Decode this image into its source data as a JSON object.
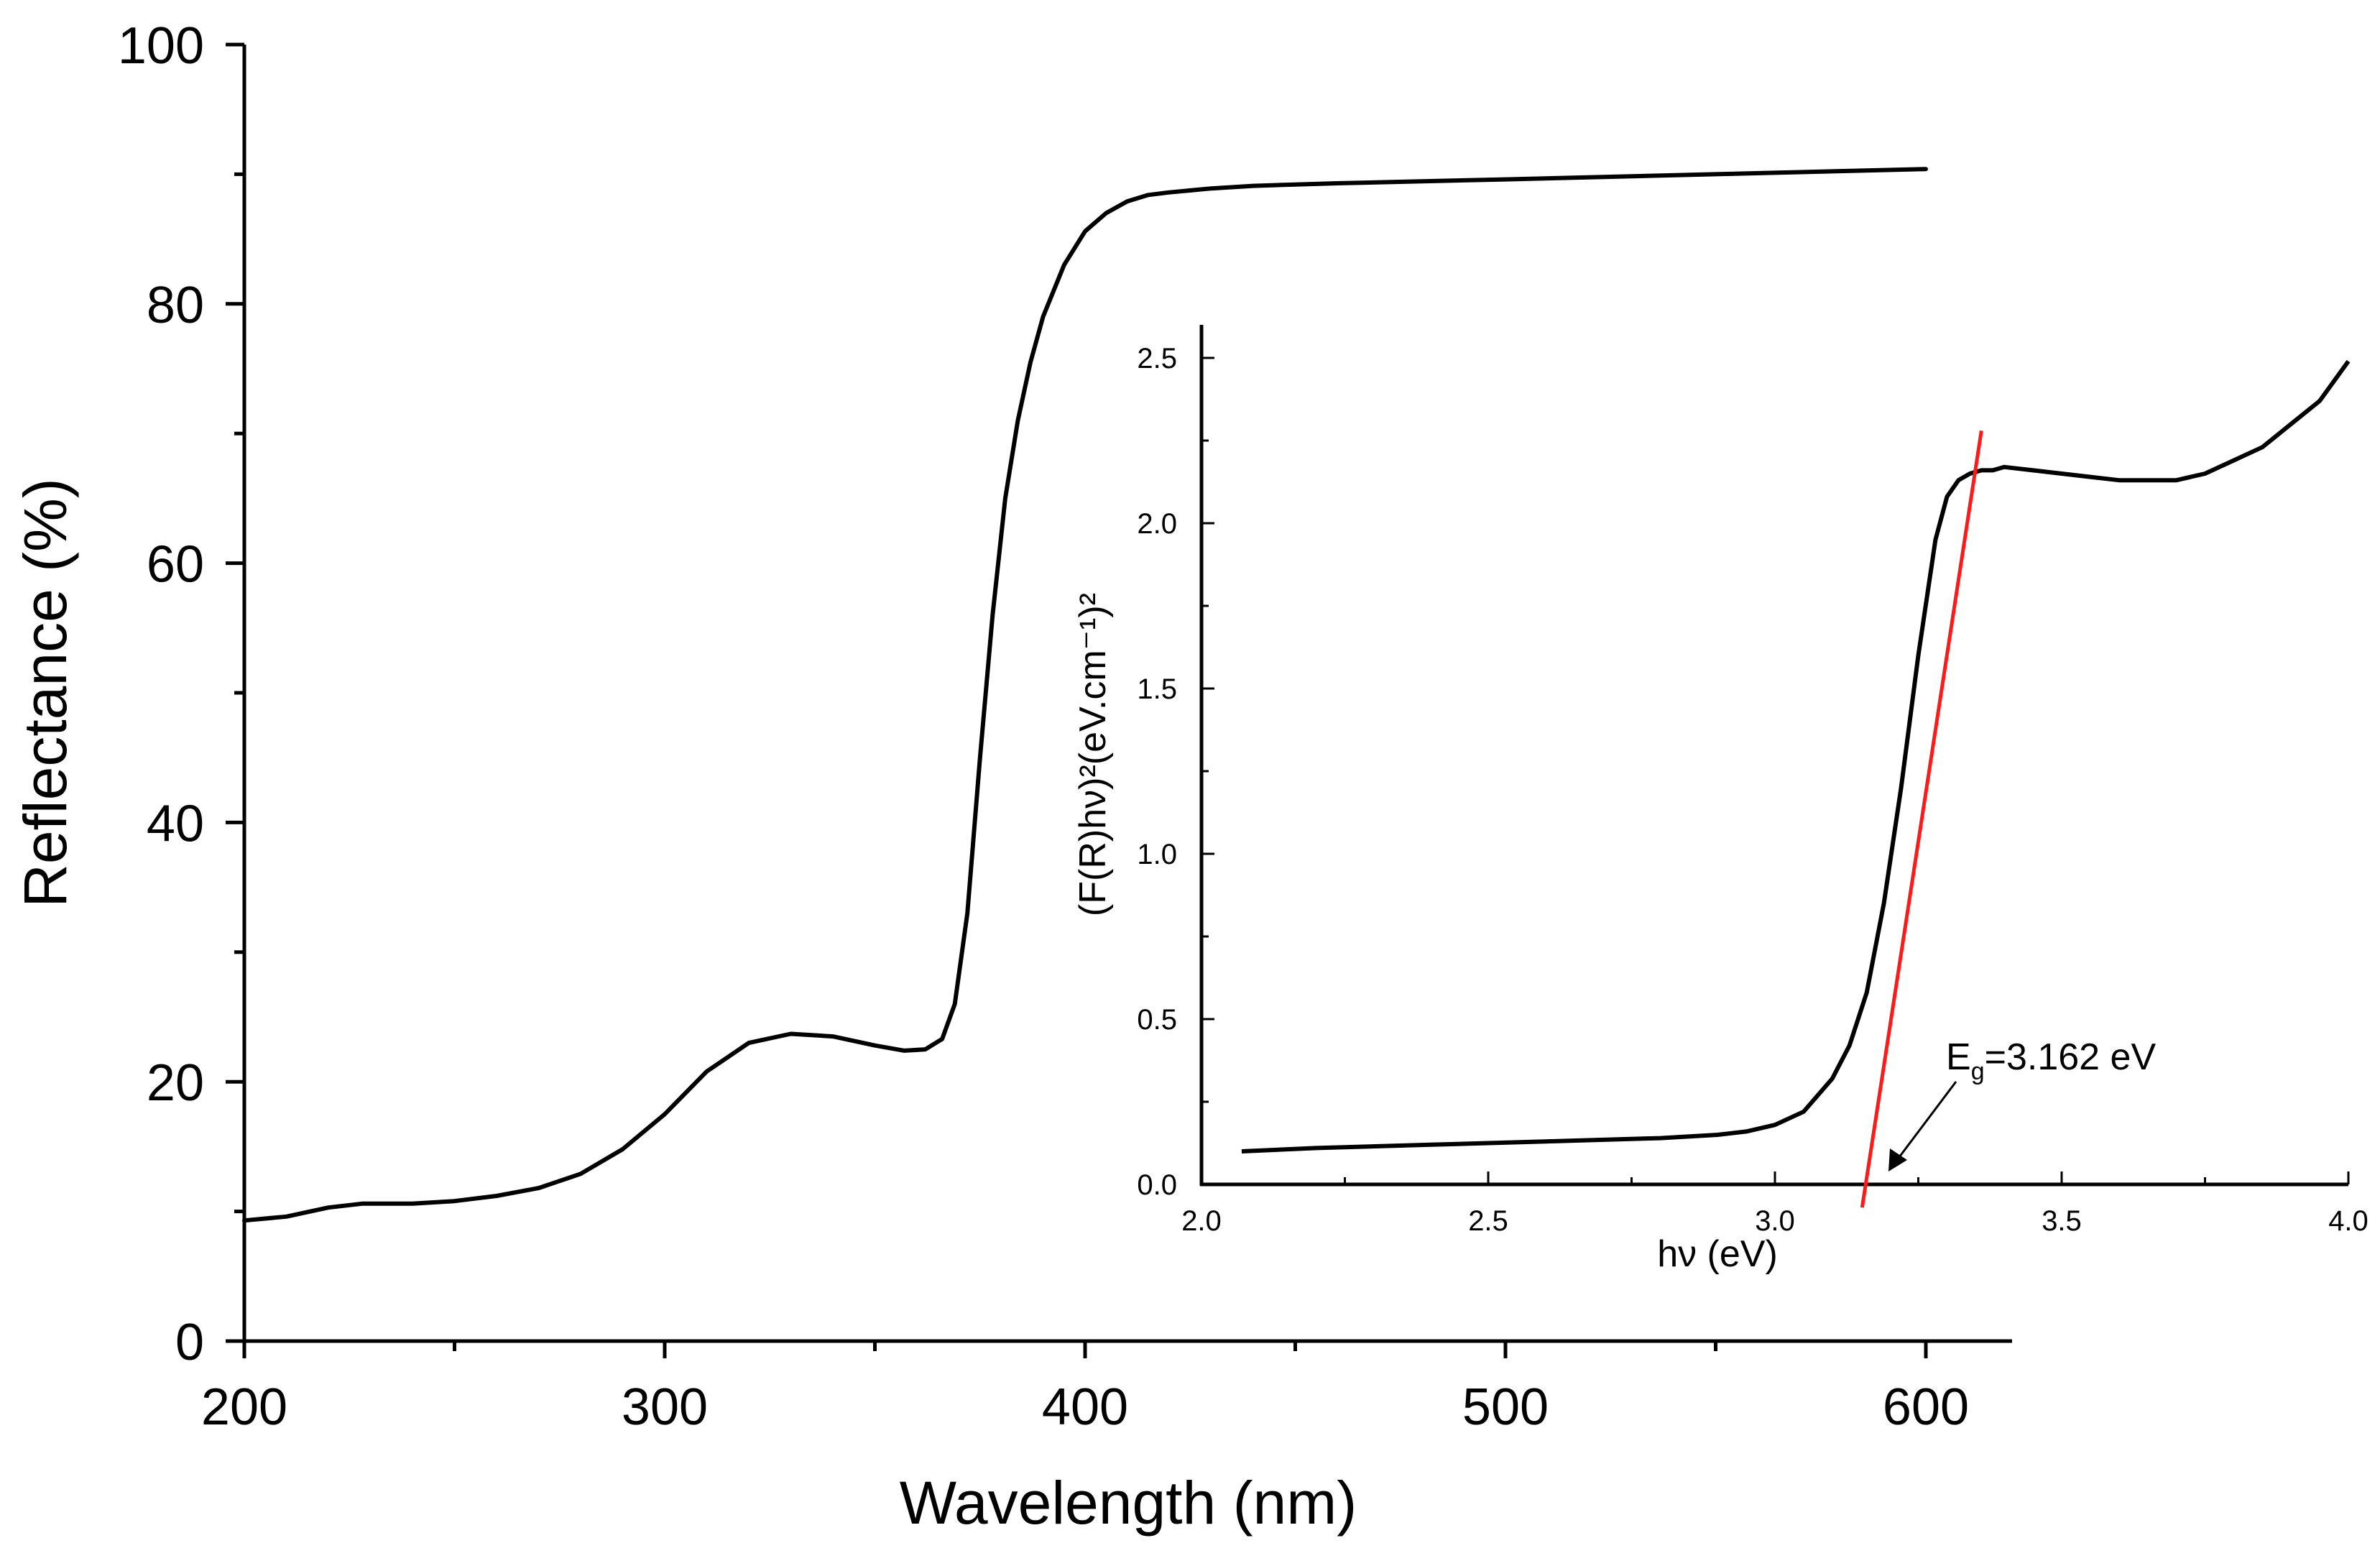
{
  "chart_data": [
    {
      "type": "line",
      "title": "",
      "xlabel": "Wavelength (nm)",
      "ylabel": "Reflectance (%)",
      "xlim": [
        200,
        620
      ],
      "ylim": [
        0,
        100
      ],
      "xticks": [
        200,
        300,
        400,
        500,
        600
      ],
      "xtick_labels": [
        "200",
        "300",
        "400",
        "500",
        "600"
      ],
      "yticks": [
        0,
        20,
        40,
        60,
        80,
        100
      ],
      "ytick_labels": [
        "0",
        "20",
        "40",
        "60",
        "80",
        "100"
      ],
      "series": [
        {
          "name": "Reflectance",
          "x": [
            200,
            210,
            220,
            228,
            240,
            250,
            260,
            270,
            280,
            290,
            300,
            310,
            320,
            330,
            340,
            350,
            357,
            362,
            366,
            369,
            372,
            375,
            378,
            381,
            384,
            387,
            390,
            395,
            400,
            405,
            410,
            415,
            420,
            430,
            440,
            460,
            500,
            550,
            600
          ],
          "y": [
            9.3,
            9.6,
            10.3,
            10.6,
            10.6,
            10.8,
            11.2,
            11.8,
            12.9,
            14.8,
            17.5,
            20.8,
            23.0,
            23.7,
            23.5,
            22.8,
            22.4,
            22.5,
            23.3,
            26.0,
            33.0,
            45.0,
            56.0,
            65.0,
            71.0,
            75.5,
            79.0,
            83.0,
            85.6,
            87.0,
            87.9,
            88.4,
            88.6,
            88.9,
            89.1,
            89.3,
            89.6,
            90.0,
            90.4
          ]
        }
      ]
    },
    {
      "type": "line",
      "title": "",
      "xlabel": "hν (eV)",
      "ylabel": "(F(R)hν)²(eV.cm⁻¹)²",
      "xlim": [
        2.0,
        4.0
      ],
      "ylim": [
        0,
        2.6
      ],
      "xticks": [
        2.0,
        2.5,
        3.0,
        3.5,
        4.0
      ],
      "xtick_labels": [
        "2.0",
        "2.5",
        "3.0",
        "3.5",
        "4.0"
      ],
      "yticks": [
        0,
        0.5,
        1.0,
        1.5,
        2.0,
        2.5
      ],
      "ytick_labels": [
        "0.0",
        "0.5",
        "1.0",
        "1.5",
        "2.0",
        "2.5"
      ],
      "series": [
        {
          "name": "Tauc plot",
          "x": [
            2.07,
            2.2,
            2.4,
            2.6,
            2.8,
            2.9,
            2.95,
            3.0,
            3.05,
            3.1,
            3.13,
            3.16,
            3.19,
            3.22,
            3.25,
            3.28,
            3.3,
            3.32,
            3.34,
            3.36,
            3.38,
            3.4,
            3.45,
            3.5,
            3.55,
            3.6,
            3.65,
            3.7,
            3.75,
            3.8,
            3.85,
            3.9,
            3.95,
            4.0
          ],
          "y": [
            0.1,
            0.11,
            0.12,
            0.13,
            0.14,
            0.15,
            0.16,
            0.18,
            0.22,
            0.32,
            0.42,
            0.58,
            0.85,
            1.2,
            1.6,
            1.95,
            2.08,
            2.13,
            2.15,
            2.16,
            2.16,
            2.17,
            2.16,
            2.15,
            2.14,
            2.13,
            2.13,
            2.13,
            2.15,
            2.19,
            2.23,
            2.3,
            2.37,
            2.49
          ]
        },
        {
          "name": "Linear fit",
          "x": [
            3.152,
            3.36
          ],
          "y": [
            -0.07,
            2.28
          ]
        }
      ],
      "annotation": {
        "text": "Eg=3.162 eV",
        "symbol": "E",
        "subscript": "g",
        "value_text": "=3.162 eV",
        "x": 3.162,
        "y": 0.0
      }
    }
  ]
}
